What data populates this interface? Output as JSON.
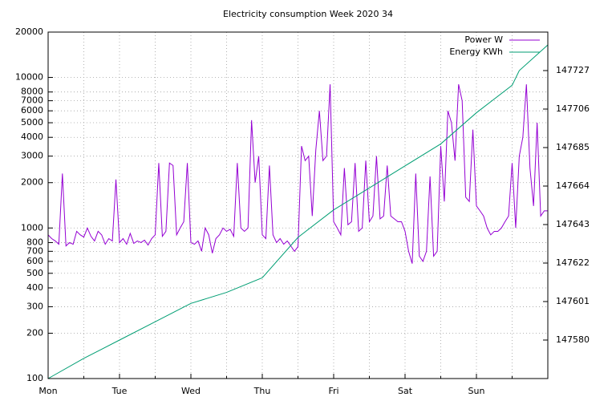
{
  "chart_data": {
    "type": "line",
    "title": "Electricity consumption Week 2020 34",
    "log_y": true,
    "grid": true,
    "legend": "top-right",
    "xlim": [
      0,
      7
    ],
    "xticks": [
      {
        "value": 0,
        "label": "Mon"
      },
      {
        "value": 1,
        "label": "Tue"
      },
      {
        "value": 2,
        "label": "Wed"
      },
      {
        "value": 3,
        "label": "Thu"
      },
      {
        "value": 4,
        "label": "Fri"
      },
      {
        "value": 5,
        "label": "Sat"
      },
      {
        "value": 6,
        "label": "Sun"
      }
    ],
    "xminorticks": [
      0.5,
      1.5,
      2.5,
      3.5,
      4.5,
      5.5,
      6.5
    ],
    "ylim": [
      100,
      20000
    ],
    "yticks": [
      100,
      200,
      300,
      400,
      500,
      600,
      700,
      800,
      1000,
      2000,
      3000,
      4000,
      5000,
      6000,
      7000,
      8000,
      10000,
      20000
    ],
    "y2lim": [
      147559,
      147748
    ],
    "y2ticks": [
      147580,
      147601,
      147622,
      147643,
      147664,
      147685,
      147706,
      147727
    ],
    "series": [
      {
        "name": "Power W",
        "color": "#9400d3",
        "x": [
          0,
          0.05,
          0.1,
          0.15,
          0.2,
          0.25,
          0.3,
          0.35,
          0.4,
          0.45,
          0.5,
          0.55,
          0.6,
          0.65,
          0.7,
          0.75,
          0.8,
          0.85,
          0.9,
          0.95,
          1,
          1.05,
          1.1,
          1.15,
          1.2,
          1.25,
          1.3,
          1.35,
          1.4,
          1.45,
          1.5,
          1.55,
          1.6,
          1.65,
          1.7,
          1.75,
          1.8,
          1.85,
          1.9,
          1.95,
          2,
          2.05,
          2.1,
          2.15,
          2.2,
          2.25,
          2.3,
          2.35,
          2.4,
          2.45,
          2.5,
          2.55,
          2.6,
          2.65,
          2.7,
          2.75,
          2.8,
          2.85,
          2.9,
          2.95,
          3,
          3.05,
          3.1,
          3.15,
          3.2,
          3.25,
          3.3,
          3.35,
          3.4,
          3.45,
          3.5,
          3.55,
          3.6,
          3.65,
          3.7,
          3.75,
          3.8,
          3.85,
          3.9,
          3.95,
          4,
          4.05,
          4.1,
          4.15,
          4.2,
          4.25,
          4.3,
          4.35,
          4.4,
          4.45,
          4.5,
          4.55,
          4.6,
          4.65,
          4.7,
          4.75,
          4.8,
          4.85,
          4.9,
          4.95,
          5,
          5.05,
          5.1,
          5.15,
          5.2,
          5.25,
          5.3,
          5.35,
          5.4,
          5.45,
          5.5,
          5.55,
          5.6,
          5.65,
          5.7,
          5.75,
          5.8,
          5.85,
          5.9,
          5.95,
          6,
          6.05,
          6.1,
          6.15,
          6.2,
          6.25,
          6.3,
          6.35,
          6.4,
          6.45,
          6.5,
          6.55,
          6.6,
          6.65,
          6.7,
          6.75,
          6.8,
          6.85,
          6.9,
          6.95,
          7
        ],
        "values": [
          900,
          850,
          820,
          780,
          2300,
          760,
          800,
          780,
          950,
          900,
          870,
          1000,
          880,
          820,
          950,
          900,
          780,
          850,
          820,
          2100,
          800,
          850,
          780,
          920,
          790,
          820,
          800,
          830,
          770,
          850,
          900,
          2700,
          880,
          950,
          2700,
          2600,
          900,
          1000,
          1100,
          2700,
          800,
          780,
          820,
          700,
          1000,
          900,
          680,
          850,
          900,
          1000,
          950,
          980,
          880,
          2700,
          1000,
          950,
          1000,
          5200,
          2000,
          3000,
          900,
          850,
          2600,
          900,
          800,
          850,
          780,
          820,
          760,
          700,
          750,
          3500,
          2800,
          3000,
          1200,
          3300,
          6000,
          2800,
          3000,
          9000,
          1100,
          1000,
          900,
          2500,
          1050,
          1100,
          2700,
          950,
          1000,
          2800,
          1100,
          1200,
          3000,
          1150,
          1200,
          2600,
          1200,
          1150,
          1100,
          1100,
          950,
          700,
          580,
          2300,
          650,
          600,
          700,
          2200,
          650,
          700,
          3500,
          1500,
          6000,
          5000,
          2800,
          9000,
          7000,
          1600,
          1500,
          4500,
          1400,
          1300,
          1200,
          1000,
          900,
          950,
          950,
          1000,
          1100,
          1200,
          2700,
          1000,
          3000,
          4000,
          9000,
          2500,
          1400,
          5000,
          1200,
          1300,
          1300
        ]
      },
      {
        "name": "Energy KWh",
        "color": "#009e73",
        "axis": "y2",
        "x": [
          0,
          0.5,
          1,
          1.5,
          2,
          2.5,
          3,
          3.5,
          4,
          4.5,
          5,
          5.5,
          6,
          6.5,
          6.6,
          7
        ],
        "values": [
          147559,
          147570,
          147580,
          147590,
          147600,
          147606,
          147614,
          147636,
          147651,
          147663,
          147675,
          147687,
          147704,
          147719,
          147727,
          147741
        ]
      }
    ]
  }
}
